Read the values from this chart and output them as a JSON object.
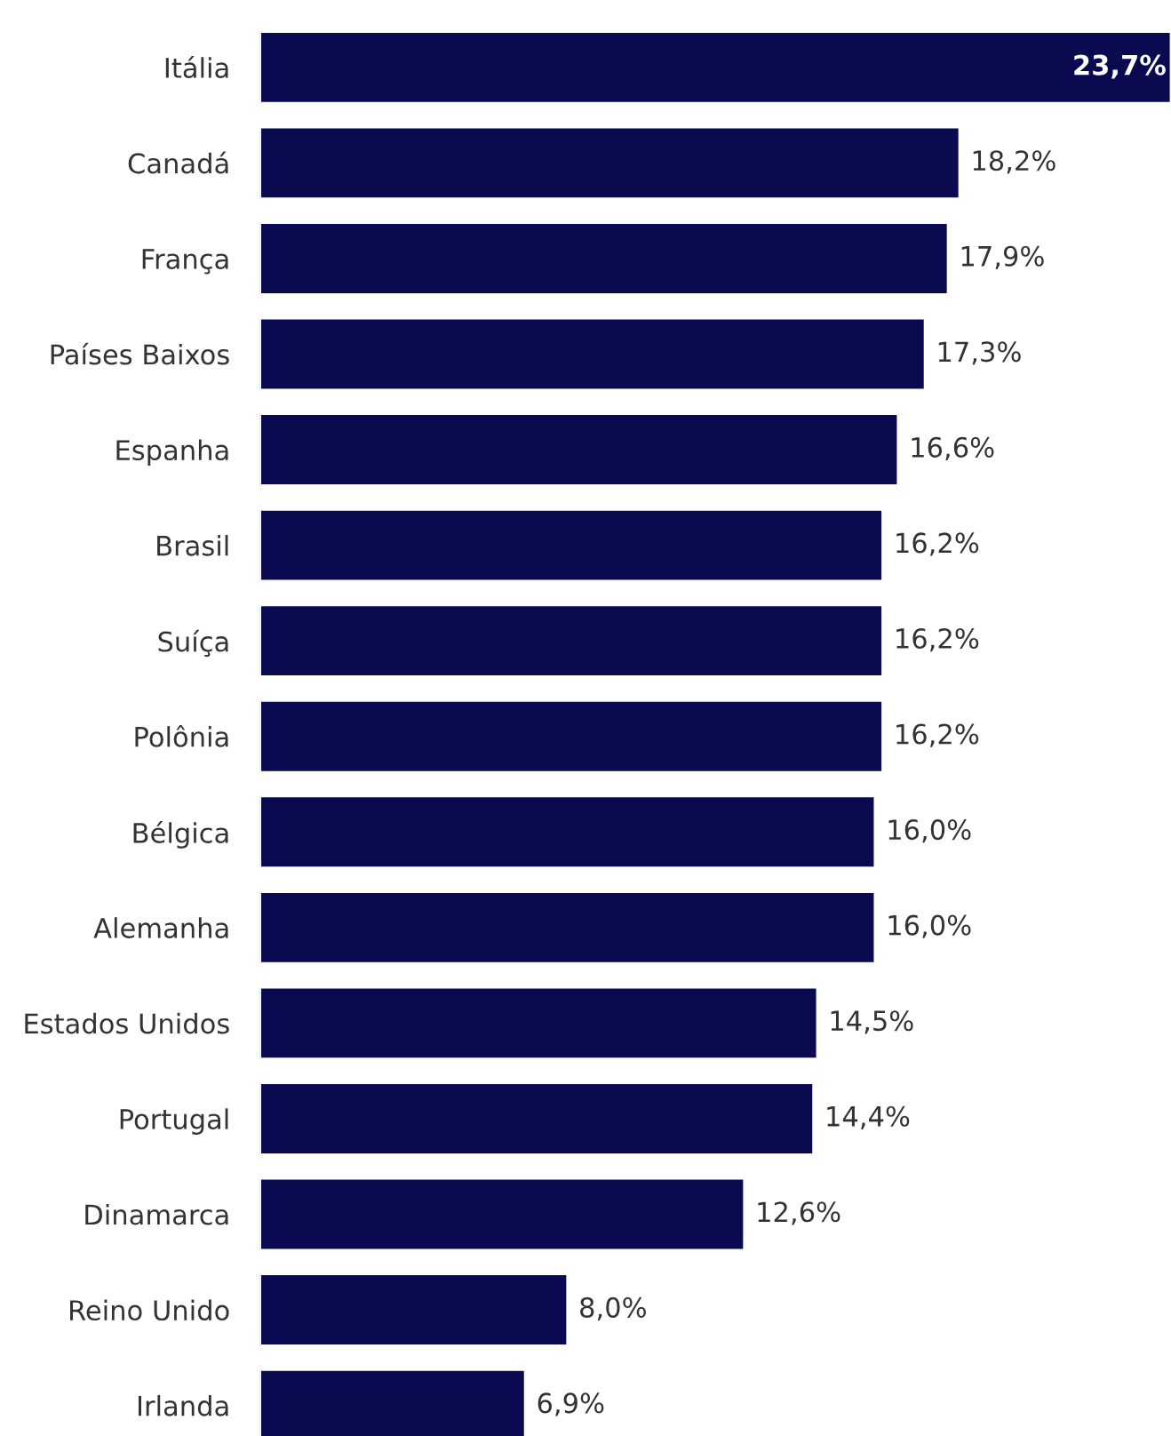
{
  "chart_data": {
    "type": "bar",
    "orientation": "horizontal",
    "categories": [
      "Itália",
      "Canadá",
      "França",
      "Países Baixos",
      "Espanha",
      "Brasil",
      "Suíça",
      "Polônia",
      "Bélgica",
      "Alemanha",
      "Estados Unidos",
      "Portugal",
      "Dinamarca",
      "Reino Unido",
      "Irlanda"
    ],
    "values": [
      23.7,
      18.2,
      17.9,
      17.3,
      16.6,
      16.2,
      16.2,
      16.2,
      16.0,
      16.0,
      14.5,
      14.4,
      12.6,
      8.0,
      6.9
    ],
    "value_labels": [
      "23,7%",
      "18,2%",
      "17,9%",
      "17,3%",
      "16,6%",
      "16,2%",
      "16,2%",
      "16,2%",
      "16,0%",
      "16,0%",
      "14,5%",
      "14,4%",
      "12,6%",
      "8,0%",
      "6,9%"
    ],
    "color": "#0a0a50",
    "grid": false,
    "legend": false
  }
}
